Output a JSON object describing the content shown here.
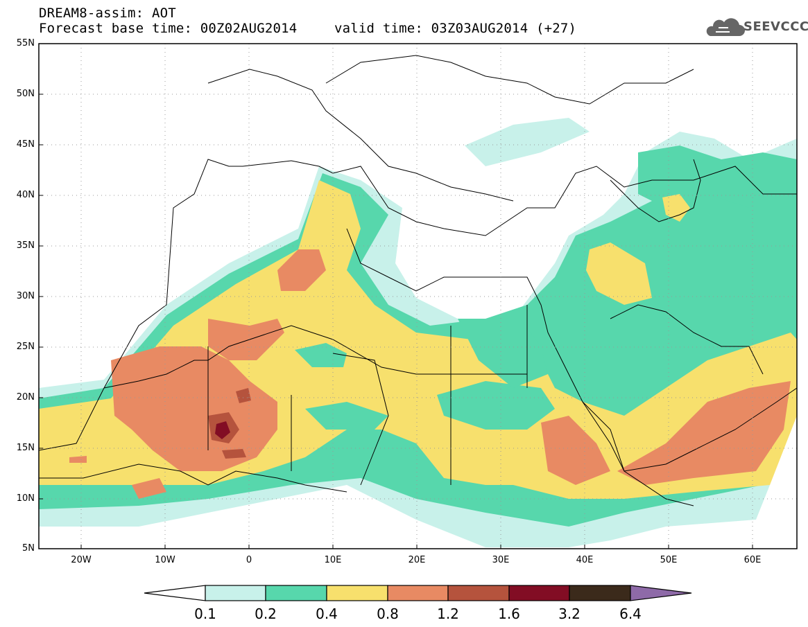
{
  "header": {
    "line1": "DREAM8-assim: AOT",
    "line2": "Forecast base time: 00Z02AUG2014",
    "line3": "valid time: 03Z03AUG2014 (+27)"
  },
  "logo": {
    "text": "SEEVCCC",
    "icon": "cloud-icon"
  },
  "map": {
    "lat_labels": [
      "55N",
      "50N",
      "45N",
      "40N",
      "35N",
      "30N",
      "25N",
      "20N",
      "15N",
      "10N",
      "5N"
    ],
    "lon_labels": [
      "20W",
      "10W",
      "0",
      "10E",
      "20E",
      "30E",
      "40E",
      "50E",
      "60E"
    ],
    "lon_range": [
      -25,
      65
    ],
    "lat_range": [
      5,
      55
    ],
    "grid": "dotted"
  },
  "colorbar": {
    "labels": [
      "0.1",
      "0.2",
      "0.4",
      "0.8",
      "1.2",
      "1.6",
      "3.2",
      "6.4"
    ],
    "colors": [
      "#ffffff",
      "#c8f1ea",
      "#57d7ac",
      "#f7e06d",
      "#e88a63",
      "#b5533d",
      "#820d24",
      "#3b2a1b",
      "#8e6aa8"
    ]
  },
  "layers": {
    "aot_0_1_color": "#c8f1ea",
    "aot_0_2_color": "#57d7ac",
    "aot_0_4_color": "#f7e06d",
    "aot_0_8_color": "#e88a63",
    "aot_1_2_color": "#b5533d",
    "aot_1_6_color": "#820d24"
  }
}
